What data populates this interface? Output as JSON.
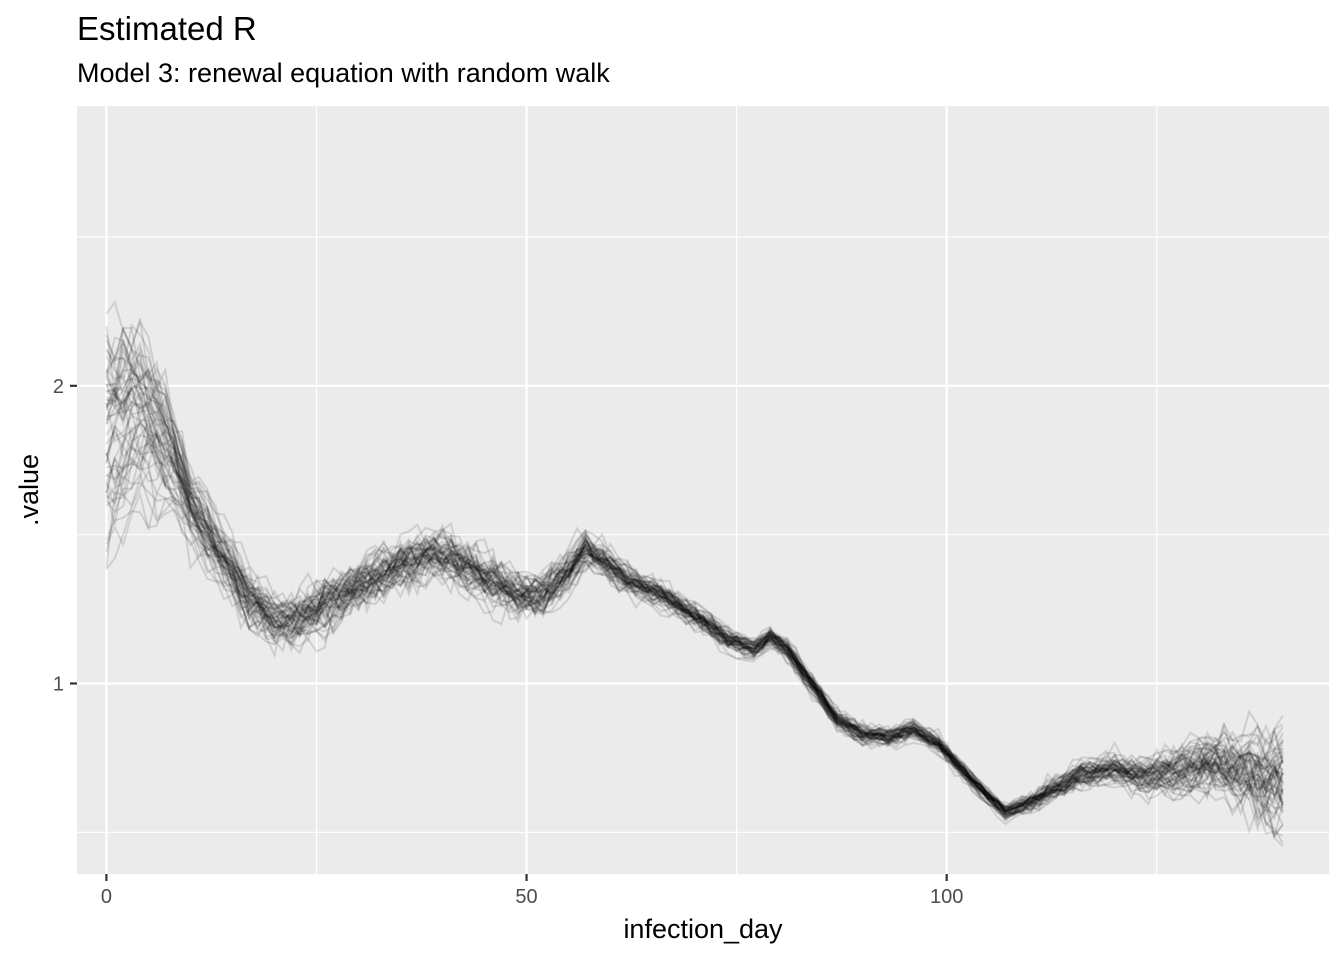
{
  "chart_data": {
    "type": "line",
    "title": "Estimated R",
    "subtitle": "Model 3: renewal equation with random walk",
    "xlabel": "infection_day",
    "ylabel": ".value",
    "xlim": [
      -3.5,
      145.5
    ],
    "ylim": [
      0.36,
      2.94
    ],
    "x_ticks": [
      0,
      50,
      100
    ],
    "x_tick_labels": [
      "0",
      "50",
      "100"
    ],
    "y_ticks": [
      1,
      2
    ],
    "y_tick_labels": [
      "1",
      "2"
    ],
    "x_minor_ticks": [
      25,
      75,
      125
    ],
    "y_minor_ticks": [
      0.5,
      1.5,
      2.5
    ],
    "grid": true,
    "panel_background": "#ebebeb",
    "grid_color": "#ffffff",
    "line_color": "#000000",
    "line_opacity": 0.12,
    "n_draws": 60,
    "x_range": [
      0,
      140
    ],
    "median_path": [
      [
        0,
        1.87
      ],
      [
        3,
        1.93
      ],
      [
        5,
        1.9
      ],
      [
        8,
        1.75
      ],
      [
        10,
        1.6
      ],
      [
        14,
        1.43
      ],
      [
        17,
        1.3
      ],
      [
        20,
        1.22
      ],
      [
        23,
        1.22
      ],
      [
        27,
        1.28
      ],
      [
        31,
        1.35
      ],
      [
        35,
        1.41
      ],
      [
        38,
        1.45
      ],
      [
        41,
        1.43
      ],
      [
        45,
        1.36
      ],
      [
        49,
        1.3
      ],
      [
        52,
        1.3
      ],
      [
        55,
        1.38
      ],
      [
        57,
        1.46
      ],
      [
        59,
        1.42
      ],
      [
        62,
        1.35
      ],
      [
        66,
        1.3
      ],
      [
        70,
        1.23
      ],
      [
        74,
        1.15
      ],
      [
        77,
        1.12
      ],
      [
        79,
        1.16
      ],
      [
        81,
        1.12
      ],
      [
        84,
        1.0
      ],
      [
        87,
        0.88
      ],
      [
        90,
        0.83
      ],
      [
        93,
        0.82
      ],
      [
        96,
        0.85
      ],
      [
        99,
        0.8
      ],
      [
        102,
        0.71
      ],
      [
        105,
        0.62
      ],
      [
        107,
        0.57
      ],
      [
        110,
        0.6
      ],
      [
        113,
        0.65
      ],
      [
        116,
        0.7
      ],
      [
        120,
        0.72
      ],
      [
        124,
        0.7
      ],
      [
        128,
        0.72
      ],
      [
        132,
        0.74
      ],
      [
        136,
        0.73
      ],
      [
        140,
        0.71
      ]
    ],
    "spread_path": [
      [
        0,
        0.2
      ],
      [
        5,
        0.16
      ],
      [
        10,
        0.1
      ],
      [
        20,
        0.1
      ],
      [
        40,
        0.1
      ],
      [
        55,
        0.08
      ],
      [
        60,
        0.06
      ],
      [
        80,
        0.04
      ],
      [
        95,
        0.04
      ],
      [
        105,
        0.03
      ],
      [
        110,
        0.04
      ],
      [
        125,
        0.07
      ],
      [
        140,
        0.16
      ]
    ]
  }
}
